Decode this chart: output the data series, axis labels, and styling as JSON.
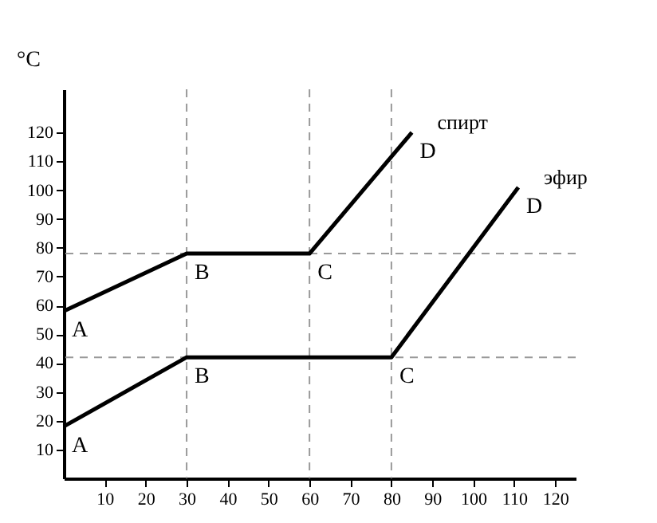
{
  "chart_data": {
    "type": "line",
    "ylabel": "°C",
    "series": [
      {
        "name": "спирт",
        "color": "#000000",
        "x": [
          0,
          30,
          60,
          85
        ],
        "values": [
          58,
          78,
          78,
          120
        ]
      },
      {
        "name": "эфир",
        "color": "#000000",
        "x": [
          0,
          30,
          80,
          111
        ],
        "values": [
          18,
          42,
          42,
          101
        ]
      }
    ],
    "annotations": [
      {
        "text": "A",
        "x": 0,
        "y": 58
      },
      {
        "text": "B",
        "x": 30,
        "y": 78
      },
      {
        "text": "C",
        "x": 60,
        "y": 78
      },
      {
        "text": "D",
        "x": 85,
        "y": 120
      },
      {
        "text": "A",
        "x": 0,
        "y": 18
      },
      {
        "text": "B",
        "x": 30,
        "y": 42
      },
      {
        "text": "C",
        "x": 80,
        "y": 42
      },
      {
        "text": "D",
        "x": 111,
        "y": 101
      }
    ],
    "ref_lines": [
      {
        "axis": "y",
        "value": 78,
        "color": "#999999",
        "line_style": "dashed"
      },
      {
        "axis": "y",
        "value": 42,
        "color": "#999999",
        "line_style": "dashed"
      },
      {
        "axis": "x",
        "value": 30,
        "color": "#999999",
        "line_style": "dashed"
      },
      {
        "axis": "x",
        "value": 60,
        "color": "#999999",
        "line_style": "dashed"
      },
      {
        "axis": "x",
        "value": 80,
        "color": "#999999",
        "line_style": "dashed"
      }
    ],
    "xlim": [
      0,
      125
    ],
    "ylim": [
      0,
      135
    ],
    "xticks": [
      10,
      20,
      30,
      40,
      50,
      60,
      70,
      80,
      90,
      100,
      110,
      120
    ],
    "yticks": [
      10,
      20,
      30,
      40,
      50,
      60,
      70,
      80,
      90,
      100,
      110,
      120
    ],
    "marker": "none",
    "line_style": "solid"
  }
}
